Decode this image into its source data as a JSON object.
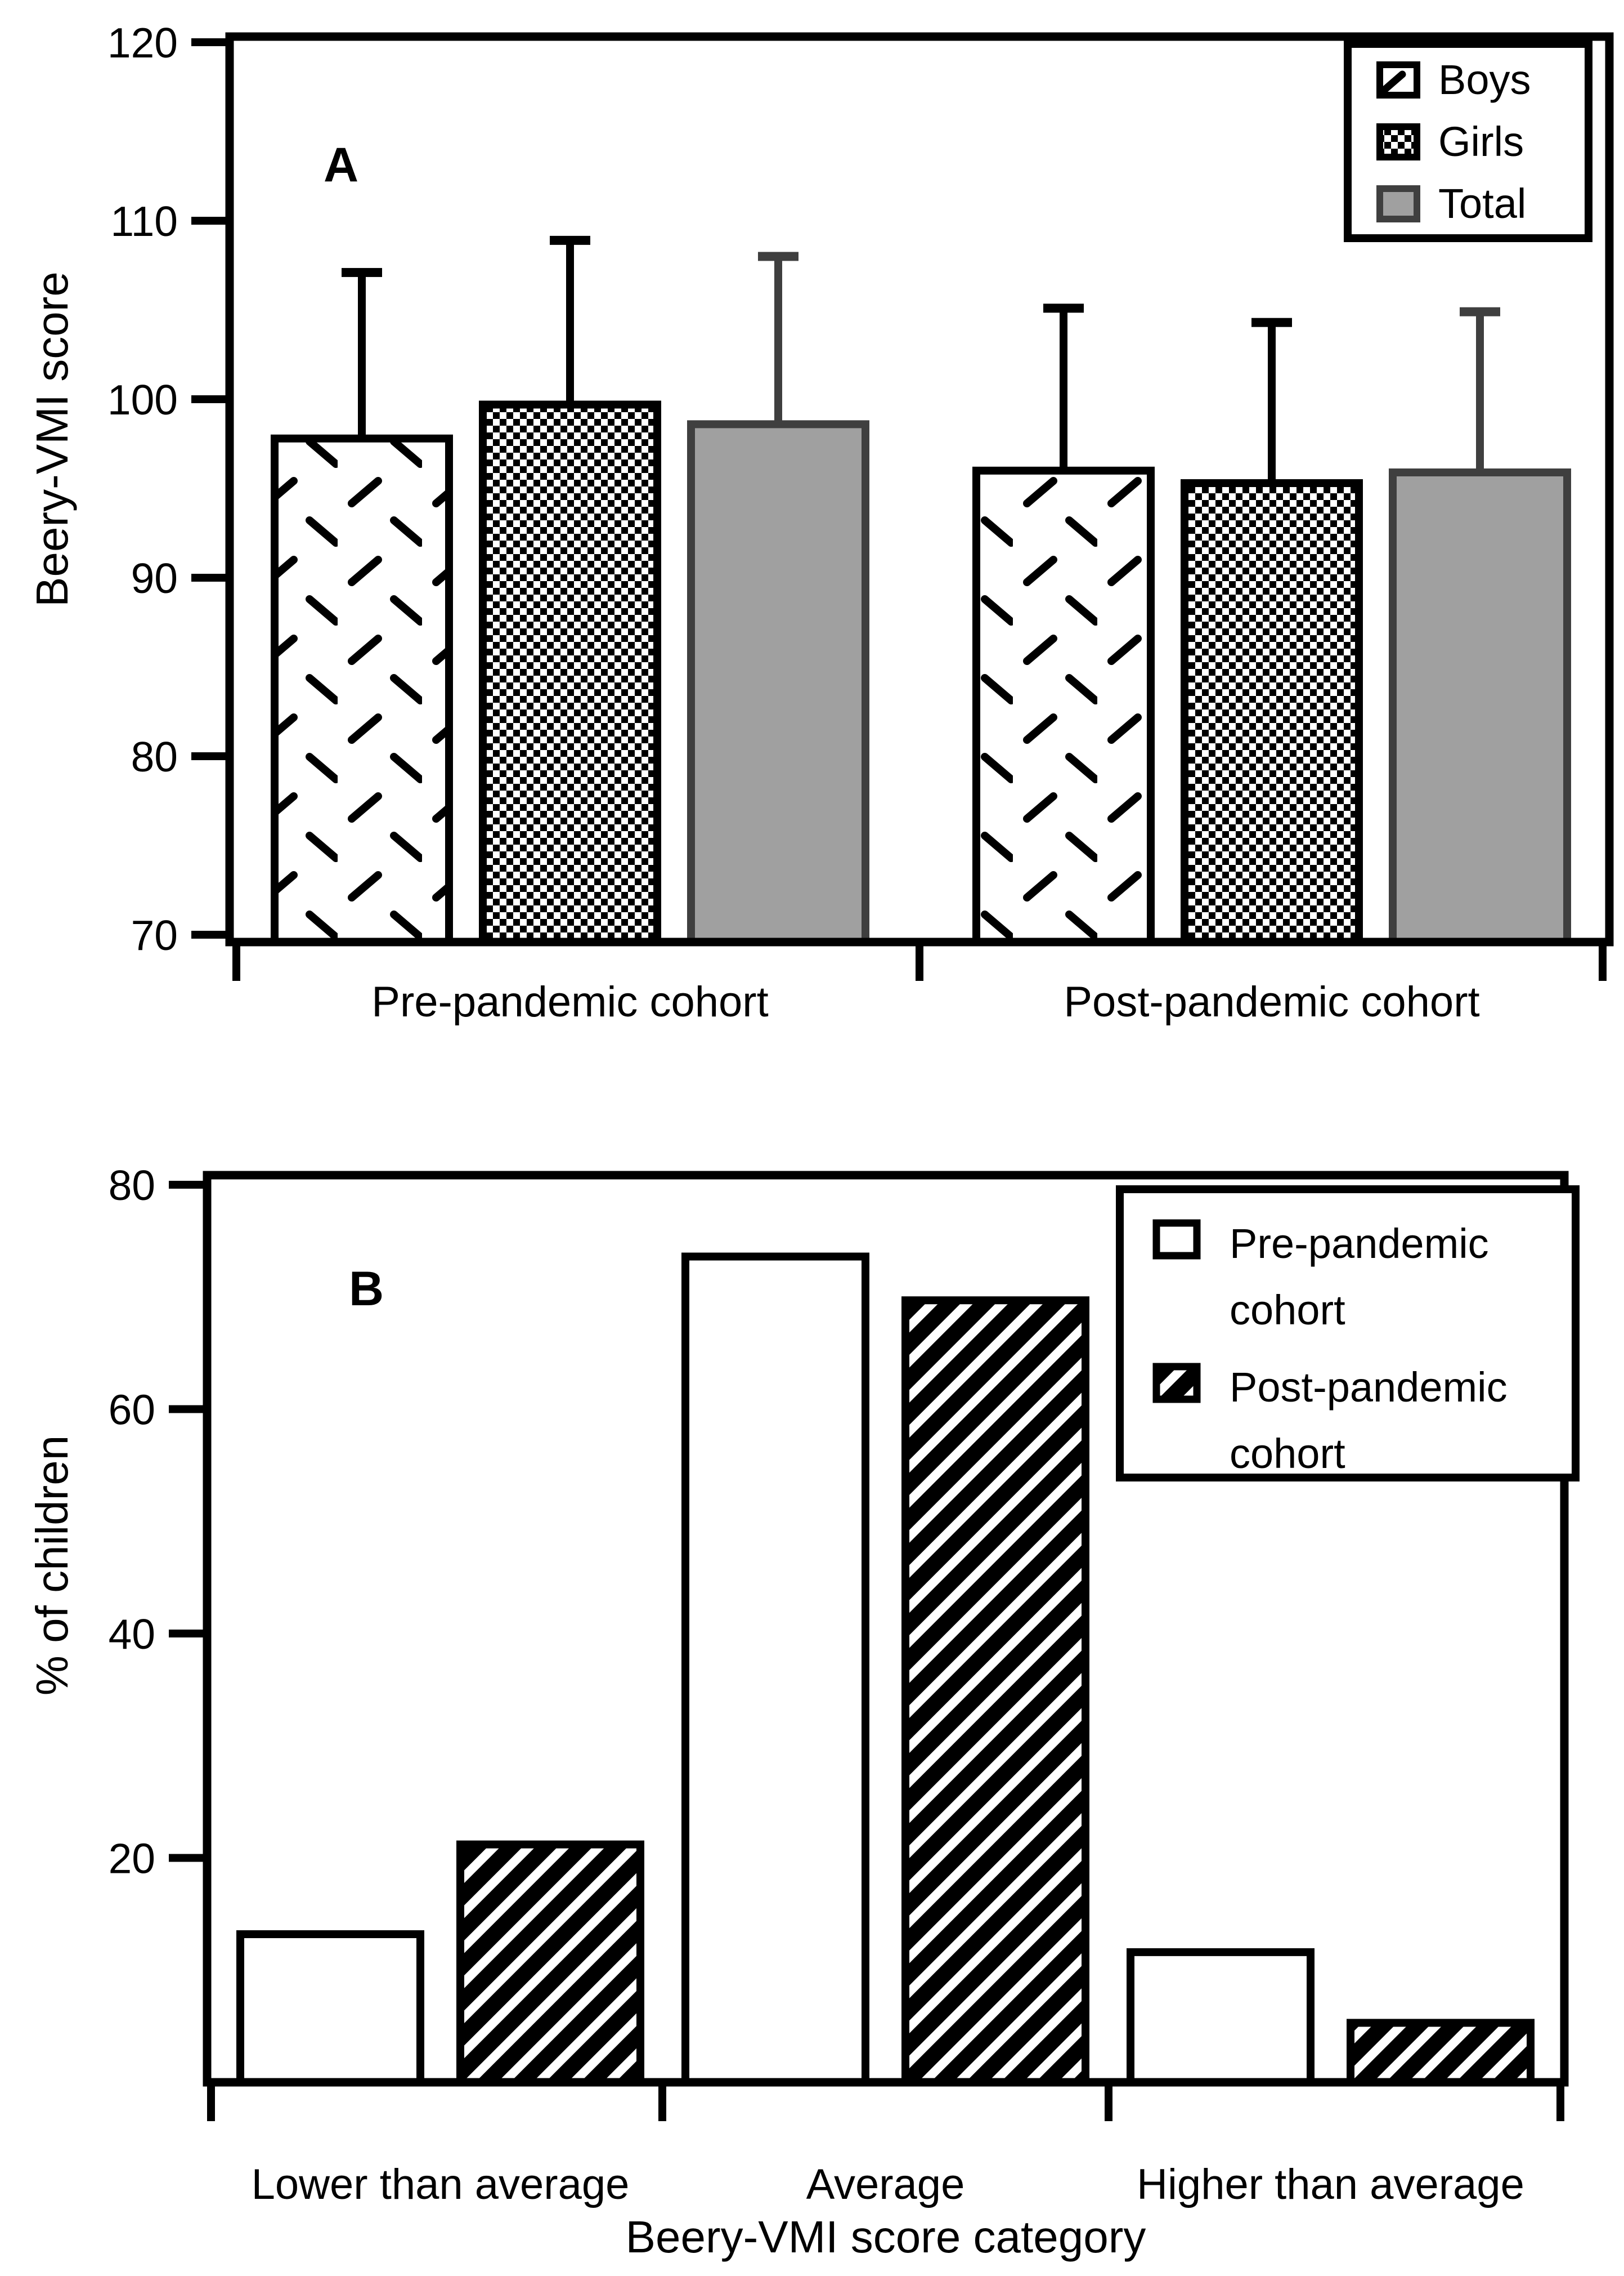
{
  "figure": {
    "background": "#ffffff",
    "ink_color": "#000000",
    "gray_fill": "#a0a0a0",
    "gray_border": "#3f3f3f"
  },
  "chart_data": [
    {
      "type": "bar",
      "panel_label": "A",
      "ylabel": "Beery-VMI score",
      "ylim": [
        70,
        120
      ],
      "yticks": [
        120,
        110,
        100,
        90,
        80,
        70
      ],
      "categories": [
        "Pre-pandemic cohort",
        "Post-pandemic cohort"
      ],
      "series": [
        {
          "name": "Boys",
          "pattern": "diagonal-dash",
          "values": [
            97.8,
            96.0
          ],
          "error_top": [
            107.1,
            105.1
          ]
        },
        {
          "name": "Girls",
          "pattern": "checkerboard",
          "values": [
            99.7,
            95.3
          ],
          "error_top": [
            108.9,
            104.3
          ]
        },
        {
          "name": "Total",
          "pattern": "solid-gray",
          "color": "#a0a0a0",
          "values": [
            98.6,
            95.9
          ],
          "error_top": [
            108.0,
            104.9
          ]
        }
      ],
      "error_bars": "upper SD whiskers with caps",
      "legend_position": "top-right",
      "grid": false
    },
    {
      "type": "bar",
      "panel_label": "B",
      "ylabel": "% of children",
      "xlabel": "Beery-VMI score category",
      "ylim": [
        0,
        80
      ],
      "yticks": [
        80,
        60,
        40,
        20
      ],
      "categories": [
        "Lower than average",
        "Average",
        "Higher than average"
      ],
      "series": [
        {
          "name": "Pre-pandemic cohort",
          "pattern": "white",
          "values": [
            13.2,
            73.6,
            11.6
          ]
        },
        {
          "name": "Post-pandemic cohort",
          "pattern": "diagonal-hatch",
          "values": [
            21.2,
            69.7,
            5.3
          ]
        }
      ],
      "legend_position": "top-right",
      "grid": false
    }
  ]
}
